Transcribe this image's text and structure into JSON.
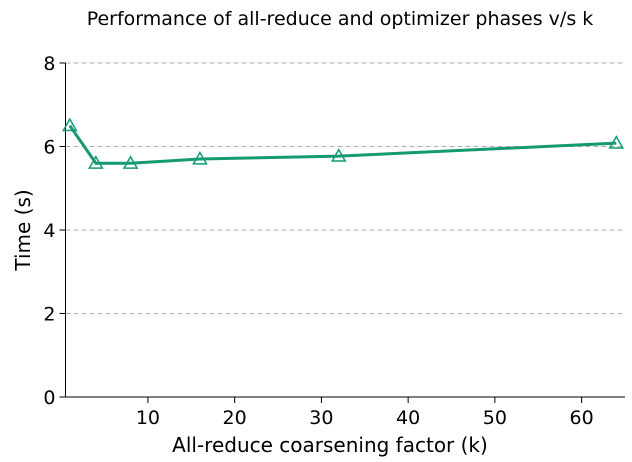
{
  "chart_data": {
    "type": "line",
    "title": "Performance of all-reduce and optimizer phases v/s k",
    "xlabel": "All-reduce coarsening factor (k)",
    "ylabel": "Time (s)",
    "x": [
      1,
      4,
      8,
      16,
      32,
      64
    ],
    "series": [
      {
        "name": "Time",
        "color": "#139a72",
        "values": [
          6.5,
          5.6,
          5.6,
          5.7,
          5.77,
          6.08
        ]
      }
    ],
    "xlim": [
      0.5,
      65
    ],
    "xticks": [
      10,
      20,
      30,
      40,
      50,
      60
    ],
    "ylim": [
      0,
      8
    ],
    "yticks": [
      0,
      2,
      4,
      6,
      8
    ],
    "grid": true
  }
}
